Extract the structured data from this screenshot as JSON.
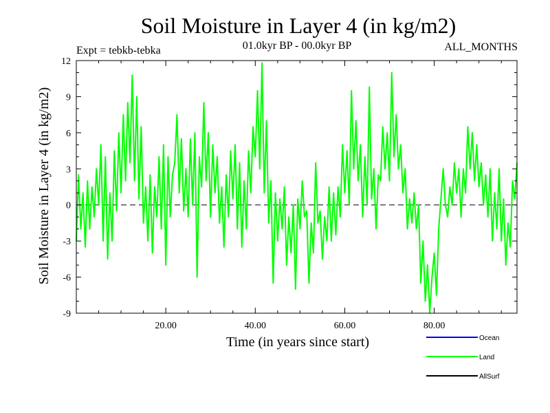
{
  "chart_data": {
    "type": "line",
    "title": "Soil Moisture in Layer 4 (in kg/m2)",
    "subtitle_left": "Expt = tebkb-tebka",
    "subtitle_center": "01.0kyr BP - 00.0kyr BP",
    "subtitle_right": "ALL_MONTHS",
    "xlabel": "Time (in years since start)",
    "ylabel": "Soil Moisture in Layer 4 (in kg/m2)",
    "xlim": [
      0,
      98.5
    ],
    "ylim": [
      -9,
      12
    ],
    "x_ticks": [
      20,
      40,
      60,
      80
    ],
    "x_tick_labels": [
      "20.00",
      "40.00",
      "60.00",
      "80.00"
    ],
    "y_ticks": [
      12,
      9,
      6,
      3,
      0,
      -3,
      -6,
      -9
    ],
    "y_tick_labels": [
      "12",
      "9",
      "6",
      "3",
      "0",
      "-3",
      "-6",
      "-9"
    ],
    "zero_line": true,
    "legend": {
      "position": "below-right",
      "entries": [
        {
          "name": "Ocean",
          "color": "#0000ff"
        },
        {
          "name": "Land",
          "color": "#00ff00"
        },
        {
          "name": "AllSurf",
          "color": "#000000"
        }
      ]
    },
    "series": [
      {
        "name": "Land",
        "color": "#00ff00",
        "points": [
          [
            0.0,
            -3.0
          ],
          [
            0.5,
            2.5
          ],
          [
            1.0,
            -2.0
          ],
          [
            1.5,
            1.0
          ],
          [
            2.0,
            -3.5
          ],
          [
            2.5,
            2.0
          ],
          [
            3.0,
            -2.0
          ],
          [
            3.5,
            1.5
          ],
          [
            4.0,
            -1.0
          ],
          [
            4.5,
            3.0
          ],
          [
            5.0,
            0.0
          ],
          [
            5.5,
            5.0
          ],
          [
            6.0,
            -3.0
          ],
          [
            6.5,
            4.0
          ],
          [
            7.0,
            -4.5
          ],
          [
            7.5,
            1.0
          ],
          [
            8.0,
            -3.0
          ],
          [
            8.5,
            4.5
          ],
          [
            9.0,
            -0.5
          ],
          [
            9.5,
            6.0
          ],
          [
            10.0,
            1.0
          ],
          [
            10.5,
            7.5
          ],
          [
            11.0,
            2.0
          ],
          [
            11.5,
            8.5
          ],
          [
            12.0,
            3.5
          ],
          [
            12.5,
            10.8
          ],
          [
            13.0,
            2.0
          ],
          [
            13.5,
            9.0
          ],
          [
            14.0,
            0.5
          ],
          [
            14.5,
            6.5
          ],
          [
            15.0,
            -1.5
          ],
          [
            15.5,
            1.5
          ],
          [
            16.0,
            -3.0
          ],
          [
            16.5,
            2.5
          ],
          [
            17.0,
            -4.0
          ],
          [
            17.5,
            1.5
          ],
          [
            18.0,
            -1.0
          ],
          [
            18.5,
            4.0
          ],
          [
            19.0,
            -2.0
          ],
          [
            19.5,
            5.0
          ],
          [
            20.0,
            -5.0
          ],
          [
            20.5,
            4.0
          ],
          [
            21.0,
            -1.0
          ],
          [
            21.5,
            2.5
          ],
          [
            22.0,
            3.5
          ],
          [
            22.5,
            7.5
          ],
          [
            23.0,
            1.0
          ],
          [
            23.5,
            5.5
          ],
          [
            24.0,
            -0.5
          ],
          [
            24.5,
            3.0
          ],
          [
            25.0,
            -1.0
          ],
          [
            25.5,
            5.5
          ],
          [
            26.0,
            0.0
          ],
          [
            26.5,
            6.0
          ],
          [
            27.0,
            -6.0
          ],
          [
            27.5,
            4.0
          ],
          [
            28.0,
            1.5
          ],
          [
            28.5,
            8.5
          ],
          [
            29.0,
            2.0
          ],
          [
            29.5,
            6.0
          ],
          [
            30.0,
            -1.0
          ],
          [
            30.5,
            5.0
          ],
          [
            31.0,
            1.0
          ],
          [
            31.5,
            4.0
          ],
          [
            32.0,
            -1.5
          ],
          [
            32.5,
            1.5
          ],
          [
            33.0,
            -3.5
          ],
          [
            33.5,
            2.5
          ],
          [
            34.0,
            -1.0
          ],
          [
            34.5,
            4.5
          ],
          [
            35.0,
            0.5
          ],
          [
            35.5,
            5.0
          ],
          [
            36.0,
            -2.0
          ],
          [
            36.5,
            3.5
          ],
          [
            37.0,
            -3.5
          ],
          [
            37.5,
            2.0
          ],
          [
            38.0,
            -2.0
          ],
          [
            38.5,
            4.5
          ],
          [
            39.0,
            1.0
          ],
          [
            39.5,
            6.5
          ],
          [
            40.0,
            4.0
          ],
          [
            40.5,
            9.5
          ],
          [
            41.0,
            3.0
          ],
          [
            41.5,
            11.8
          ],
          [
            42.0,
            1.0
          ],
          [
            42.5,
            7.0
          ],
          [
            43.0,
            -1.5
          ],
          [
            43.5,
            2.0
          ],
          [
            44.0,
            -6.5
          ],
          [
            44.5,
            1.0
          ],
          [
            45.0,
            -3.0
          ],
          [
            45.5,
            0.5
          ],
          [
            46.0,
            -2.0
          ],
          [
            46.5,
            1.5
          ],
          [
            47.0,
            -5.0
          ],
          [
            47.5,
            -1.0
          ],
          [
            48.0,
            -4.0
          ],
          [
            48.5,
            0.0
          ],
          [
            49.0,
            -7.0
          ],
          [
            49.5,
            0.5
          ],
          [
            50.0,
            -2.0
          ],
          [
            50.5,
            2.0
          ],
          [
            51.0,
            -1.0
          ],
          [
            51.5,
            -0.5
          ],
          [
            52.0,
            -6.5
          ],
          [
            52.5,
            -1.5
          ],
          [
            53.0,
            -4.0
          ],
          [
            53.5,
            3.5
          ],
          [
            54.0,
            -1.5
          ],
          [
            54.5,
            -0.5
          ],
          [
            55.0,
            -4.5
          ],
          [
            55.5,
            -1.0
          ],
          [
            56.0,
            -3.0
          ],
          [
            56.5,
            1.5
          ],
          [
            57.0,
            -3.0
          ],
          [
            57.5,
            1.0
          ],
          [
            58.0,
            -2.5
          ],
          [
            58.5,
            1.5
          ],
          [
            59.0,
            -1.0
          ],
          [
            59.5,
            5.0
          ],
          [
            60.0,
            1.0
          ],
          [
            60.5,
            4.5
          ],
          [
            61.0,
            0.0
          ],
          [
            61.5,
            9.5
          ],
          [
            62.0,
            3.0
          ],
          [
            62.5,
            7.0
          ],
          [
            63.0,
            2.0
          ],
          [
            63.5,
            5.0
          ],
          [
            64.0,
            -1.0
          ],
          [
            64.5,
            4.0
          ],
          [
            65.0,
            0.0
          ],
          [
            65.5,
            9.8
          ],
          [
            66.0,
            0.5
          ],
          [
            66.5,
            3.0
          ],
          [
            67.0,
            -2.0
          ],
          [
            67.5,
            2.5
          ],
          [
            68.0,
            2.0
          ],
          [
            68.5,
            6.5
          ],
          [
            69.0,
            3.0
          ],
          [
            69.5,
            6.0
          ],
          [
            70.0,
            2.0
          ],
          [
            70.5,
            11.0
          ],
          [
            71.0,
            4.0
          ],
          [
            71.5,
            7.5
          ],
          [
            72.0,
            3.0
          ],
          [
            72.5,
            5.0
          ],
          [
            73.0,
            1.0
          ],
          [
            73.5,
            3.0
          ],
          [
            74.0,
            -2.0
          ],
          [
            74.5,
            0.5
          ],
          [
            75.0,
            -1.5
          ],
          [
            75.5,
            1.0
          ],
          [
            76.0,
            -2.0
          ],
          [
            76.5,
            0.0
          ],
          [
            77.0,
            -6.5
          ],
          [
            77.5,
            -3.0
          ],
          [
            78.0,
            -8.0
          ],
          [
            78.5,
            -5.0
          ],
          [
            79.0,
            -9.0
          ],
          [
            79.5,
            -6.0
          ],
          [
            80.0,
            -4.0
          ],
          [
            80.5,
            -7.5
          ],
          [
            81.0,
            -2.0
          ],
          [
            81.5,
            0.5
          ],
          [
            82.0,
            3.0
          ],
          [
            82.5,
            0.0
          ],
          [
            83.0,
            -1.0
          ],
          [
            83.5,
            1.5
          ],
          [
            84.0,
            0.0
          ],
          [
            84.5,
            3.5
          ],
          [
            85.0,
            1.0
          ],
          [
            85.5,
            3.0
          ],
          [
            86.0,
            -1.0
          ],
          [
            86.5,
            3.0
          ],
          [
            87.0,
            1.0
          ],
          [
            87.5,
            6.5
          ],
          [
            88.0,
            3.0
          ],
          [
            88.5,
            6.0
          ],
          [
            89.0,
            2.0
          ],
          [
            89.5,
            5.0
          ],
          [
            90.0,
            1.5
          ],
          [
            90.5,
            3.5
          ],
          [
            91.0,
            0.0
          ],
          [
            91.5,
            2.5
          ],
          [
            92.0,
            -1.0
          ],
          [
            92.5,
            3.0
          ],
          [
            93.0,
            -3.0
          ],
          [
            93.5,
            1.0
          ],
          [
            94.0,
            -2.0
          ],
          [
            94.5,
            3.0
          ],
          [
            95.0,
            -3.0
          ],
          [
            95.5,
            0.5
          ],
          [
            96.0,
            -5.0
          ],
          [
            96.5,
            -1.5
          ],
          [
            97.0,
            -3.5
          ],
          [
            97.5,
            2.0
          ],
          [
            98.0,
            0.5
          ],
          [
            98.5,
            3.5
          ]
        ]
      }
    ]
  }
}
